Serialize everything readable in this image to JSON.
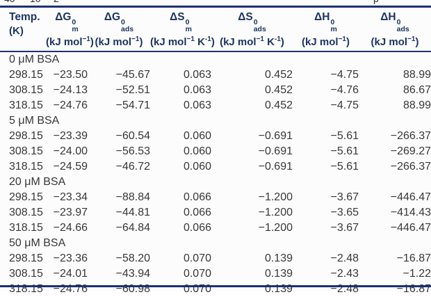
{
  "page": {
    "top_fragments": [
      "40",
      "10",
      "2",
      "p"
    ]
  },
  "colors": {
    "accent_navy_rule": "#1c2f77",
    "header_text_navy": "#1d3461",
    "body_text": "#373737",
    "background": "#fcfcfc"
  },
  "table": {
    "columns": [
      {
        "title": "Temp.",
        "unit_pre": "(K)"
      },
      {
        "sym": "ΔG",
        "sup": "0",
        "sub": "m",
        "unit_pre": "(kJ mol",
        "unit_sup": "−1",
        "unit_post": ")"
      },
      {
        "sym": "ΔG",
        "sup": "0",
        "sub": "ads",
        "unit_pre": "(kJ mol",
        "unit_sup": "−1",
        "unit_post": ")"
      },
      {
        "sym": "ΔS",
        "sup": "0",
        "sub": "m",
        "unit_pre": "(kJ mol",
        "unit_sup": "−1",
        "unit_mid": " K",
        "unit_sup2": "-1",
        "unit_post": ")"
      },
      {
        "sym": "ΔS",
        "sup": "0",
        "sub": "ads",
        "unit_pre": "(kJ mol",
        "unit_sup": "−1",
        "unit_mid": " K",
        "unit_sup2": "-1",
        "unit_post": ")"
      },
      {
        "sym": "ΔH",
        "sup": "0",
        "sub": "m",
        "unit_pre": "(kJ mol",
        "unit_sup": "−1",
        "unit_post": ")"
      },
      {
        "sym": "ΔH",
        "sup": "0",
        "sub": "ads",
        "unit_pre": "(kJ mol",
        "unit_sup": "−1",
        "unit_post": ")"
      }
    ],
    "sections": [
      {
        "label": "0 μM BSA",
        "rows": [
          [
            "298.15",
            "−23.50",
            "−45.67",
            "0.063",
            "0.452",
            "−4.75",
            "88.99"
          ],
          [
            "308.15",
            "−24.13",
            "−52.51",
            "0.063",
            "0.452",
            "−4.76",
            "86.67"
          ],
          [
            "318.15",
            "−24.76",
            "−54.71",
            "0.063",
            "0.452",
            "−4.75",
            "88.99"
          ]
        ]
      },
      {
        "label": "5 μM BSA",
        "rows": [
          [
            "298.15",
            "−23.39",
            "−60.54",
            "0.060",
            "−0.691",
            "−5.61",
            "−266.37"
          ],
          [
            "308.15",
            "−24.00",
            "−56.53",
            "0.060",
            "−0.691",
            "−5.61",
            "−269.27"
          ],
          [
            "318.15",
            "−24.59",
            "−46.72",
            "0.060",
            "−0.691",
            "−5.61",
            "−266.37"
          ]
        ]
      },
      {
        "label": "20 μM BSA",
        "rows": [
          [
            "298.15",
            "−23.34",
            "−88.84",
            "0.066",
            "−1.200",
            "−3.67",
            "−446.47"
          ],
          [
            "308.15",
            "−23.97",
            "−44.81",
            "0.066",
            "−1.200",
            "−3.65",
            "−414.43"
          ],
          [
            "318.15",
            "−24.66",
            "−64.84",
            "0.066",
            "−1.200",
            "−3.67",
            "−446.47"
          ]
        ]
      },
      {
        "label": "50 μM BSA",
        "rows": [
          [
            "298.15",
            "−23.36",
            "−58.20",
            "0.070",
            "0.139",
            "−2.48",
            "−16.87"
          ],
          [
            "308.15",
            "−24.01",
            "−43.94",
            "0.070",
            "0.139",
            "−2.43",
            "−1.22"
          ],
          [
            "318.15",
            "−24.76",
            "−60.98",
            "0.070",
            "0.139",
            "−2.48",
            "−16.87"
          ]
        ]
      }
    ]
  }
}
